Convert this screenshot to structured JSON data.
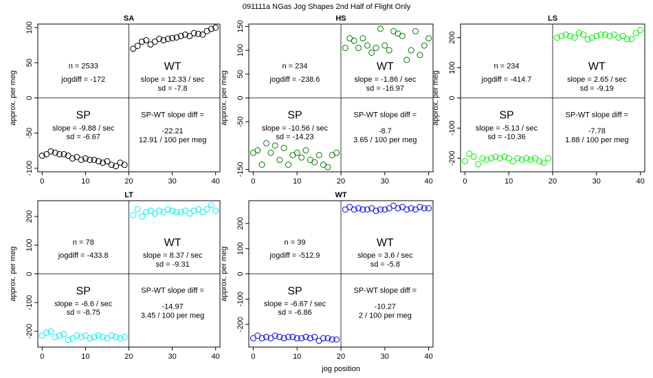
{
  "figure": {
    "title": "091111a   NGas Jog Shapes 2nd Half of Flight Only",
    "xlabel": "jog position",
    "ylabel": "approx. per meg"
  },
  "chart_data": [
    {
      "type": "scatter",
      "title": "SA",
      "xlim": [
        -1,
        41
      ],
      "ylim": [
        -105,
        105
      ],
      "xticks": [
        "0",
        "10",
        "20",
        "30",
        "40"
      ],
      "yticks": [
        "-100",
        "-50",
        "0",
        "50",
        "100"
      ],
      "color": "#000000",
      "series": [
        {
          "x": [
            0,
            1,
            2,
            3,
            4,
            5,
            6,
            7,
            8,
            9,
            10,
            11,
            12,
            13,
            14,
            15,
            16,
            17,
            18,
            19
          ],
          "y": [
            -82,
            -80,
            -76,
            -78,
            -80,
            -80,
            -82,
            -86,
            -84,
            -88,
            -86,
            -88,
            -88,
            -90,
            -92,
            -90,
            -95,
            -97,
            -92,
            -95
          ]
        },
        {
          "x": [
            21,
            22,
            23,
            24,
            25,
            26,
            27,
            28,
            29,
            30,
            31,
            32,
            33,
            34,
            35,
            36,
            37,
            38,
            39,
            40
          ],
          "y": [
            70,
            74,
            80,
            82,
            76,
            80,
            84,
            82,
            84,
            85,
            86,
            88,
            90,
            88,
            92,
            91,
            90,
            95,
            98,
            100
          ]
        }
      ],
      "annotations": {
        "n": "n = 2533",
        "jogdiff": "jogdiff = -172",
        "wt_label": "WT",
        "wt_slope": "slope = 12.33 / sec",
        "wt_sd": "sd = -7.8",
        "sp_label": "SP",
        "sp_slope": "slope = -9.88 / sec",
        "sp_sd": "sd = -6.67",
        "diff_label": "SP-WT slope diff =",
        "diff_value": "-22.21",
        "diff_per": "12.91 / 100 per meg"
      }
    },
    {
      "type": "scatter",
      "title": "HS",
      "xlim": [
        -1,
        41
      ],
      "ylim": [
        -155,
        155
      ],
      "xticks": [
        "0",
        "10",
        "20",
        "30",
        "40"
      ],
      "yticks": [
        "-150",
        "-50",
        "0",
        "50",
        "100",
        "150"
      ],
      "color": "#007a00",
      "series": [
        {
          "x": [
            0,
            1,
            2,
            3,
            4,
            5,
            6,
            7,
            8,
            9,
            10,
            11,
            12,
            13,
            14,
            15,
            16,
            17,
            18,
            19
          ],
          "y": [
            -115,
            -110,
            -140,
            -95,
            -115,
            -100,
            -130,
            -105,
            -140,
            -120,
            -115,
            -125,
            -110,
            -130,
            -135,
            -120,
            -140,
            -145,
            -120,
            -115
          ]
        },
        {
          "x": [
            21,
            22,
            23,
            24,
            25,
            26,
            27,
            28,
            29,
            30,
            31,
            32,
            33,
            34,
            35,
            36,
            37,
            38,
            39,
            40
          ],
          "y": [
            105,
            125,
            120,
            105,
            125,
            110,
            95,
            105,
            145,
            110,
            100,
            140,
            135,
            130,
            80,
            100,
            140,
            90,
            110,
            125
          ]
        }
      ],
      "annotations": {
        "n": "n = 234",
        "jogdiff": "jogdiff = -238.6",
        "wt_label": "WT",
        "wt_slope": "slope = -1.86 / sec",
        "wt_sd": "sd = -16.97",
        "sp_label": "SP",
        "sp_slope": "slope = -10.56 / sec",
        "sp_sd": "sd = -14.23",
        "diff_label": "SP-WT slope diff =",
        "diff_value": "-8.7",
        "diff_per": "3.65 / 100 per meg"
      }
    },
    {
      "type": "scatter",
      "title": "LS",
      "xlim": [
        -1,
        41
      ],
      "ylim": [
        -245,
        245
      ],
      "xticks": [
        "0",
        "10",
        "20",
        "30",
        "40"
      ],
      "yticks": [
        "-200",
        "-100",
        "0",
        "100",
        "200"
      ],
      "color": "#00ee00",
      "series": [
        {
          "x": [
            0,
            1,
            2,
            3,
            4,
            5,
            6,
            7,
            8,
            9,
            10,
            11,
            12,
            13,
            14,
            15,
            16,
            17,
            18,
            19
          ],
          "y": [
            -210,
            -185,
            -195,
            -220,
            -200,
            -205,
            -200,
            -195,
            -200,
            -195,
            -200,
            -210,
            -200,
            -205,
            -200,
            -205,
            -200,
            -210,
            -215,
            -200
          ]
        },
        {
          "x": [
            21,
            22,
            23,
            24,
            25,
            26,
            27,
            28,
            29,
            30,
            31,
            32,
            33,
            34,
            35,
            36,
            37,
            38,
            39,
            40
          ],
          "y": [
            200,
            205,
            210,
            205,
            200,
            215,
            210,
            195,
            200,
            205,
            210,
            210,
            205,
            210,
            200,
            205,
            195,
            195,
            215,
            225
          ]
        }
      ],
      "annotations": {
        "n": "n = 234",
        "jogdiff": "jogdiff = -414.7",
        "wt_label": "WT",
        "wt_slope": "slope = 2.65 / sec",
        "wt_sd": "sd = -9.19",
        "sp_label": "SP",
        "sp_slope": "slope = -5.13 / sec",
        "sp_sd": "sd = -10.36",
        "diff_label": "SP-WT slope diff =",
        "diff_value": "-7.78",
        "diff_per": "1.88 / 100 per meg"
      }
    },
    {
      "type": "scatter",
      "title": "LT",
      "xlim": [
        -1,
        41
      ],
      "ylim": [
        -255,
        255
      ],
      "xticks": [
        "0",
        "10",
        "20",
        "30",
        "40"
      ],
      "yticks": [
        "-200",
        "-100",
        "0",
        "100",
        "200"
      ],
      "color": "#00eeee",
      "series": [
        {
          "x": [
            0,
            1,
            2,
            3,
            4,
            5,
            6,
            7,
            8,
            9,
            10,
            11,
            12,
            13,
            14,
            15,
            16,
            17,
            18,
            19
          ],
          "y": [
            -215,
            -205,
            -200,
            -220,
            -215,
            -210,
            -230,
            -225,
            -215,
            -220,
            -215,
            -225,
            -220,
            -215,
            -220,
            -225,
            -215,
            -220,
            -225,
            -220
          ]
        },
        {
          "x": [
            21,
            22,
            23,
            24,
            25,
            26,
            27,
            28,
            29,
            30,
            31,
            32,
            33,
            34,
            35,
            36,
            37,
            38,
            39,
            40
          ],
          "y": [
            205,
            225,
            200,
            215,
            220,
            210,
            220,
            215,
            225,
            220,
            215,
            215,
            220,
            210,
            220,
            225,
            215,
            225,
            240,
            220
          ]
        }
      ],
      "annotations": {
        "n": "n = 78",
        "jogdiff": "jogdiff = -433.8",
        "wt_label": "WT",
        "wt_slope": "slope = 8.37 / sec",
        "wt_sd": "sd = -9.31",
        "sp_label": "SP",
        "sp_slope": "slope = -6.6 / sec",
        "sp_sd": "sd = -8.75",
        "diff_label": "SP-WT slope diff =",
        "diff_value": "-14.97",
        "diff_per": "3.45 / 100 per meg"
      }
    },
    {
      "type": "scatter",
      "title": "WT",
      "xlim": [
        -1,
        41
      ],
      "ylim": [
        -290,
        290
      ],
      "xticks": [
        "0",
        "10",
        "20",
        "30",
        "40"
      ],
      "yticks": [
        "-200",
        "-100",
        "0",
        "100",
        "200"
      ],
      "color": "#0000ee",
      "series": [
        {
          "x": [
            0,
            1,
            2,
            3,
            4,
            5,
            6,
            7,
            8,
            9,
            10,
            11,
            12,
            13,
            14,
            15,
            16,
            17,
            18,
            19
          ],
          "y": [
            -255,
            -245,
            -255,
            -250,
            -255,
            -245,
            -250,
            -255,
            -250,
            -250,
            -255,
            -255,
            -250,
            -255,
            -250,
            -265,
            -255,
            -255,
            -260,
            -260
          ]
        },
        {
          "x": [
            21,
            22,
            23,
            24,
            25,
            26,
            27,
            28,
            29,
            30,
            31,
            32,
            33,
            34,
            35,
            36,
            37,
            38,
            39,
            40
          ],
          "y": [
            255,
            265,
            255,
            260,
            255,
            255,
            260,
            250,
            255,
            255,
            260,
            270,
            260,
            265,
            255,
            260,
            255,
            265,
            260,
            260
          ]
        }
      ],
      "annotations": {
        "n": "n = 39",
        "jogdiff": "jogdiff = -512.9",
        "wt_label": "WT",
        "wt_slope": "slope = 3.6 / sec",
        "wt_sd": "sd = -5.8",
        "sp_label": "SP",
        "sp_slope": "slope = -6.67 / sec",
        "sp_sd": "sd = -6.86",
        "diff_label": "SP-WT slope diff =",
        "diff_value": "-10.27",
        "diff_per": "2 / 100 per meg"
      }
    }
  ]
}
